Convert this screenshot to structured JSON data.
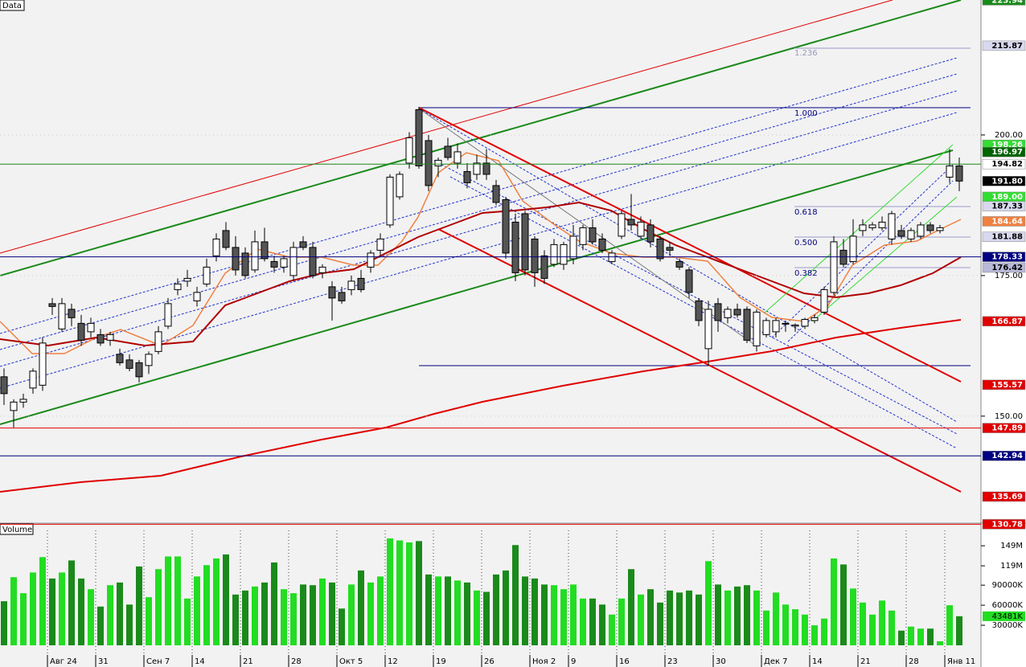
{
  "chart_data": {
    "type": "candlestick",
    "title": "Data",
    "categories": [
      null,
      null,
      null,
      null,
      null,
      "Авг 24",
      null,
      null,
      null,
      null,
      "31",
      null,
      null,
      null,
      null,
      "Сен 7",
      null,
      null,
      null,
      null,
      "14",
      null,
      null,
      null,
      null,
      "21",
      null,
      null,
      null,
      null,
      "28",
      null,
      null,
      null,
      null,
      "Окт 5",
      null,
      null,
      null,
      null,
      "12",
      null,
      null,
      null,
      null,
      "19",
      null,
      null,
      null,
      null,
      "26",
      null,
      null,
      null,
      null,
      "Ноя 2",
      null,
      null,
      null,
      "9",
      null,
      null,
      null,
      null,
      "16",
      null,
      null,
      null,
      null,
      "23",
      null,
      null,
      null,
      null,
      "30",
      null,
      null,
      null,
      null,
      "Дек 7",
      null,
      null,
      null,
      null,
      "14",
      null,
      null,
      null,
      null,
      "21",
      null,
      null,
      null,
      null,
      "28",
      null,
      null,
      null,
      "Янв 11",
      null
    ],
    "open": [
      157,
      151,
      152.5,
      155,
      155.5,
      170,
      165.5,
      169,
      166.5,
      165,
      164.5,
      163.5,
      161,
      160,
      159.5,
      159,
      161.5,
      166,
      172.5,
      174,
      170.5,
      173.5,
      178.5,
      183,
      180,
      179,
      176,
      181,
      177.5,
      176.5,
      175,
      181,
      180,
      175.5,
      173,
      172,
      172.5,
      174.5,
      176.5,
      179.5,
      184,
      189,
      195,
      204.5,
      199,
      194.5,
      198,
      195,
      193.5,
      193,
      195,
      191,
      188.5,
      184.5,
      186,
      181.5,
      178.5,
      177,
      177,
      178,
      180.5,
      183.5,
      181.5,
      177.5,
      182,
      185,
      182,
      184,
      181.5,
      180,
      177.5,
      176,
      170.5,
      162,
      170,
      167.5,
      169,
      169,
      162.5,
      164.5,
      165,
      166.5,
      166,
      166,
      167,
      168.5,
      172,
      179.5,
      177.5,
      183,
      183.5,
      183.5,
      181.5,
      183,
      181.5,
      182,
      184,
      183,
      192.5,
      194.5
    ],
    "high": [
      158.5,
      153,
      154,
      158.5,
      164,
      171,
      171,
      170,
      168,
      167.5,
      165.5,
      165,
      162,
      161,
      160,
      161.5,
      166,
      171,
      174.5,
      176,
      173,
      178,
      182.5,
      184.5,
      182,
      180,
      183,
      183.5,
      178.5,
      178.5,
      181,
      182,
      181,
      177,
      174,
      173,
      175,
      176,
      179.5,
      182.5,
      193,
      193.5,
      200.5,
      205,
      200,
      196,
      199.5,
      198.5,
      195,
      196.5,
      197.5,
      192,
      189,
      186,
      186.5,
      182,
      179.5,
      181.5,
      181,
      184,
      184,
      185,
      182.5,
      179.5,
      186.5,
      189.5,
      185.5,
      185,
      182,
      181,
      178,
      176.5,
      171,
      170.5,
      171,
      169.5,
      170,
      169.5,
      169,
      167.5,
      167.5,
      167,
      166.5,
      167.5,
      168,
      173,
      182,
      181.5,
      185,
      185,
      184.5,
      185.5,
      186.5,
      184,
      183.5,
      184.5,
      184.5,
      184,
      197.5,
      196
    ],
    "low": [
      152,
      148,
      151.5,
      154,
      154.5,
      168,
      165,
      166,
      162.5,
      164,
      162.5,
      162.5,
      159,
      158,
      156,
      157.5,
      161,
      165.5,
      171.5,
      173,
      169.5,
      173,
      177.5,
      179.5,
      175,
      174.5,
      175.5,
      177.5,
      175.5,
      175.5,
      174,
      179.5,
      174.5,
      174.5,
      167,
      170,
      171.5,
      172,
      175.5,
      178.5,
      183.5,
      188.5,
      194,
      194,
      190,
      192.5,
      195.5,
      194,
      190.5,
      192,
      192,
      187.5,
      178,
      174,
      175,
      173,
      173.5,
      176.5,
      176,
      177,
      179.5,
      180.5,
      179,
      177,
      181.5,
      183,
      181.5,
      180,
      177.5,
      178.5,
      176,
      171,
      166,
      159,
      165,
      166.5,
      167.5,
      163,
      161.5,
      164,
      164,
      165,
      165,
      165.5,
      166.5,
      168,
      171.5,
      176.5,
      177,
      182,
      183,
      183,
      180.5,
      181.5,
      181,
      181.5,
      182.5,
      182.5,
      191.5,
      190
    ],
    "close": [
      154,
      152.5,
      153,
      158,
      163,
      169.5,
      170,
      167.5,
      163.5,
      166.5,
      163,
      164.5,
      159.5,
      158.5,
      157,
      161,
      165,
      170,
      173.5,
      174.5,
      172,
      176.5,
      181.5,
      180,
      176,
      175,
      181,
      178,
      176.5,
      178,
      180,
      180,
      175,
      176.5,
      171,
      170.5,
      174,
      172.5,
      179,
      181.5,
      192.5,
      193,
      199.5,
      194.5,
      191,
      195.5,
      196,
      197,
      191.5,
      195,
      193,
      188,
      179,
      175.5,
      176,
      175.5,
      174.5,
      180.5,
      180.5,
      182,
      183.5,
      181,
      179.5,
      179,
      186,
      184,
      184.5,
      181,
      178,
      179.5,
      176.5,
      172,
      167,
      169,
      167,
      169,
      168,
      163.5,
      168.5,
      167,
      167,
      166.5,
      166.2,
      167.2,
      167.5,
      172.5,
      181,
      177,
      182,
      184,
      184,
      184.5,
      186,
      182,
      183,
      184,
      183,
      183.5,
      194.5,
      191.8
    ],
    "up_color": "#ffffff",
    "down_color": "#555555",
    "ylim": [
      131.4,
      224
    ],
    "yticks": [
      {
        "value": 150,
        "label": "150.00"
      },
      {
        "value": 175,
        "label": "175.00"
      },
      {
        "value": 200,
        "label": "200.00"
      }
    ],
    "price_labels": [
      {
        "value": 223.94,
        "label": "223.94",
        "color": "#1a8a1a",
        "text_color": "#ffffff"
      },
      {
        "value": 215.87,
        "label": "215.87",
        "color": "#d8d8ee",
        "text_color": "#000000"
      },
      {
        "value": 198.26,
        "label": "198.26",
        "color": "#33dd33",
        "text_color": "#ffffff"
      },
      {
        "value": 196.97,
        "label": "196.97",
        "color": "#006400",
        "text_color": "#ffffff"
      },
      {
        "value": 194.82,
        "label": "194.82",
        "color": "#ffffff",
        "text_color": "#000000",
        "line": "#1a8a1a"
      },
      {
        "value": 191.8,
        "label": "191.80",
        "color": "#000000",
        "text_color": "#ffffff"
      },
      {
        "value": 189,
        "label": "189.00",
        "color": "#33dd33",
        "text_color": "#ffffff"
      },
      {
        "value": 187.33,
        "label": "187.33",
        "color": "#d8d8ee",
        "text_color": "#000000"
      },
      {
        "value": 184.64,
        "label": "184.64",
        "color": "#f08040",
        "text_color": "#ffffff"
      },
      {
        "value": 181.88,
        "label": "181.88",
        "color": "#d8d8ee",
        "text_color": "#000000"
      },
      {
        "value": 178.33,
        "label": "178.33",
        "color": "#000080",
        "text_color": "#ffffff",
        "line": "#000080"
      },
      {
        "value": 176.42,
        "label": "176.42",
        "color": "#b8b8d8",
        "text_color": "#000000"
      },
      {
        "value": 166.87,
        "label": "166.87",
        "color": "#e00000",
        "text_color": "#ffffff"
      },
      {
        "value": 155.57,
        "label": "155.57",
        "color": "#e00000",
        "text_color": "#ffffff"
      },
      {
        "value": 147.89,
        "label": "147.89",
        "color": "#e00000",
        "text_color": "#ffffff",
        "line": "#e00000"
      },
      {
        "value": 142.94,
        "label": "142.94",
        "color": "#000080",
        "text_color": "#ffffff",
        "line": "#000080"
      },
      {
        "value": 135.69,
        "label": "135.69",
        "color": "#e00000",
        "text_color": "#ffffff"
      },
      {
        "value": 130.78,
        "label": "130.78",
        "color": "#e00000",
        "text_color": "#ffffff",
        "line": "#e00000"
      }
    ],
    "fib_labels": [
      "1.236",
      "1.000",
      "0.618",
      "0.500",
      "0.382"
    ],
    "volume": {
      "title": "Volume",
      "values": [
        66,
        102,
        78,
        109,
        132,
        100,
        109,
        127,
        100,
        84,
        58,
        90,
        94,
        61,
        118,
        72,
        114,
        133,
        133,
        70,
        103,
        120,
        130,
        136,
        76,
        82,
        88,
        94,
        124,
        84,
        78,
        91,
        90,
        100,
        94,
        55,
        91,
        112,
        94,
        103,
        160,
        157,
        154,
        156,
        106,
        103,
        103,
        97,
        94,
        82,
        80,
        106,
        112,
        150,
        103,
        100,
        91,
        90,
        84,
        91,
        70,
        70,
        61,
        46,
        70,
        114,
        76,
        84,
        64,
        82,
        79,
        82,
        76,
        126,
        91,
        82,
        88,
        90,
        82,
        52,
        79,
        61,
        54,
        46,
        30,
        40,
        130,
        121,
        85,
        64,
        46,
        67,
        52,
        22,
        28,
        25,
        25,
        6,
        60,
        43.481
      ],
      "up_color": "#22dd22",
      "down_color": "#1a8a1a",
      "ylim": [
        0,
        172
      ],
      "yticks": [
        {
          "value": 30,
          "label": "30000K"
        },
        {
          "value": 60,
          "label": "60000K"
        },
        {
          "value": 90,
          "label": "90000K"
        },
        {
          "value": 119,
          "label": "119M"
        },
        {
          "value": 149,
          "label": "149M"
        }
      ],
      "last_label": "43481K"
    }
  }
}
